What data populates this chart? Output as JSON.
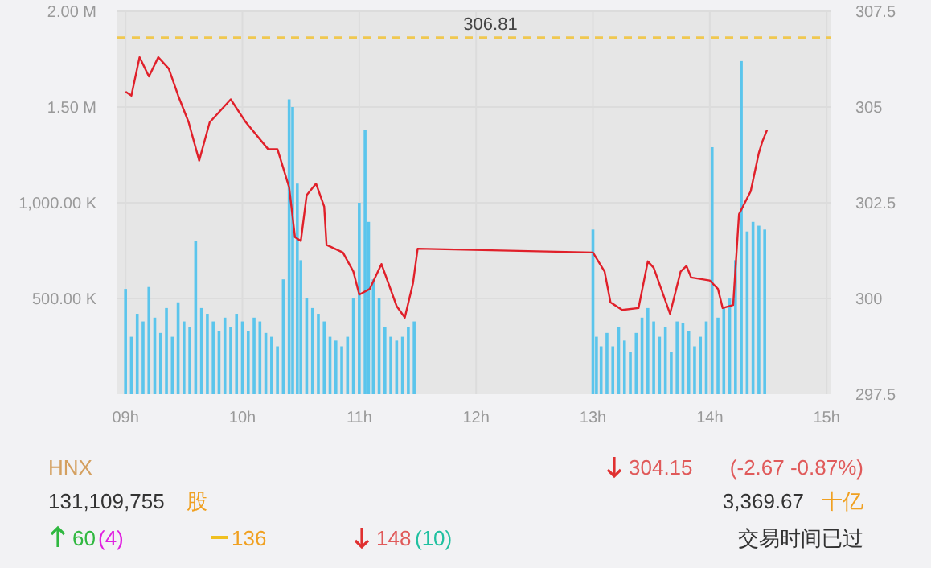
{
  "chart_data": {
    "type": "bar",
    "xlim": [
      8.93,
      15.04
    ],
    "xticks": [
      {
        "value": 9,
        "label": "09h"
      },
      {
        "value": 10,
        "label": "10h"
      },
      {
        "value": 11,
        "label": "11h"
      },
      {
        "value": 12,
        "label": "12h"
      },
      {
        "value": 13,
        "label": "13h"
      },
      {
        "value": 14,
        "label": "14h"
      },
      {
        "value": 15,
        "label": "15h"
      }
    ],
    "ylim": [
      0,
      2000000
    ],
    "yticks": [
      {
        "value": 500000,
        "label": "500.00 K"
      },
      {
        "value": 1000000,
        "label": "1,000.00 K"
      },
      {
        "value": 1500000,
        "label": "1.50 M"
      },
      {
        "value": 2000000,
        "label": "2.00 M"
      }
    ],
    "y2lim": [
      297.5,
      307.5
    ],
    "y2ticks": [
      297.5,
      300,
      302.5,
      305,
      307.5
    ],
    "grid": true,
    "ref_lines": [
      {
        "axis": "y2",
        "value": 306.81,
        "label": "306.81",
        "color": "#f0c850",
        "line_style": "dashed"
      }
    ],
    "series": [
      {
        "color": "#5bc5ec",
        "x": [
          9.0,
          9.05,
          9.1,
          9.15,
          9.2,
          9.25,
          9.3,
          9.35,
          9.4,
          9.45,
          9.5,
          9.55,
          9.6,
          9.65,
          9.7,
          9.75,
          9.8,
          9.85,
          9.9,
          9.95,
          10.0,
          10.05,
          10.1,
          10.15,
          10.2,
          10.25,
          10.3,
          10.35,
          10.4,
          10.43,
          10.47,
          10.5,
          10.55,
          10.6,
          10.65,
          10.7,
          10.75,
          10.8,
          10.85,
          10.9,
          10.95,
          11.0,
          11.05,
          11.08,
          11.12,
          11.17,
          11.22,
          11.27,
          11.32,
          11.37,
          11.42,
          11.47,
          13.0,
          13.03,
          13.07,
          13.12,
          13.17,
          13.22,
          13.27,
          13.32,
          13.37,
          13.42,
          13.47,
          13.52,
          13.57,
          13.62,
          13.67,
          13.72,
          13.77,
          13.82,
          13.87,
          13.92,
          13.97,
          14.02,
          14.07,
          14.12,
          14.17,
          14.22,
          14.27,
          14.32,
          14.37,
          14.42,
          14.47
        ],
        "values": [
          550000,
          300000,
          420000,
          380000,
          560000,
          400000,
          320000,
          450000,
          300000,
          480000,
          380000,
          350000,
          800000,
          450000,
          420000,
          380000,
          330000,
          400000,
          350000,
          420000,
          380000,
          330000,
          400000,
          380000,
          320000,
          300000,
          250000,
          600000,
          1540000,
          1500000,
          1100000,
          700000,
          500000,
          450000,
          420000,
          380000,
          300000,
          280000,
          250000,
          300000,
          500000,
          1000000,
          1380000,
          900000,
          600000,
          500000,
          350000,
          300000,
          280000,
          300000,
          350000,
          380000,
          860000,
          300000,
          250000,
          320000,
          250000,
          350000,
          280000,
          220000,
          320000,
          400000,
          450000,
          380000,
          300000,
          350000,
          220000,
          380000,
          370000,
          330000,
          250000,
          300000,
          380000,
          1290000,
          400000,
          450000,
          500000,
          700000,
          1740000,
          850000,
          900000,
          880000,
          860000
        ]
      },
      {
        "type": "line",
        "axis": "y2",
        "color": "#e0202a",
        "x": [
          9.0,
          9.05,
          9.12,
          9.2,
          9.28,
          9.37,
          9.45,
          9.54,
          9.63,
          9.72,
          9.9,
          10.03,
          10.22,
          10.3,
          10.4,
          10.45,
          10.5,
          10.55,
          10.63,
          10.7,
          10.72,
          10.86,
          10.95,
          11.0,
          11.09,
          11.19,
          11.32,
          11.39,
          11.46,
          11.5,
          13.0,
          13.1,
          13.15,
          13.25,
          13.39,
          13.47,
          13.52,
          13.66,
          13.75,
          13.8,
          13.84,
          14.0,
          14.07,
          14.11,
          14.2,
          14.25,
          14.35,
          14.42,
          14.45,
          14.49
        ],
        "values": [
          305.4,
          305.3,
          306.3,
          305.8,
          306.3,
          306.0,
          305.3,
          304.6,
          303.6,
          304.6,
          305.2,
          304.6,
          303.9,
          303.9,
          302.9,
          301.6,
          301.5,
          302.7,
          303.0,
          302.4,
          301.4,
          301.2,
          300.7,
          300.1,
          300.25,
          300.9,
          299.8,
          299.5,
          300.4,
          301.3,
          301.2,
          300.7,
          299.9,
          299.7,
          299.75,
          300.97,
          300.8,
          299.6,
          300.7,
          300.85,
          300.55,
          300.47,
          300.25,
          299.75,
          299.83,
          302.2,
          302.8,
          303.8,
          304.1,
          304.4
        ]
      }
    ],
    "annotations": [
      "HNX",
      "131,109,755",
      "股",
      "304.15",
      "(-2.67  -0.87%)",
      "3,369.67",
      "十亿",
      "60",
      "(4)",
      "136",
      "148",
      "(10)",
      "交易时间已过"
    ]
  }
}
